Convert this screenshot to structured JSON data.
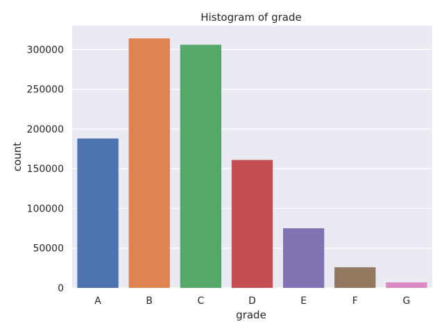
{
  "chart_data": {
    "type": "bar",
    "title": "Histogram of grade",
    "xlabel": "grade",
    "ylabel": "count",
    "categories": [
      "A",
      "B",
      "C",
      "D",
      "E",
      "F",
      "G"
    ],
    "values": [
      188000,
      314000,
      306000,
      161000,
      75000,
      26000,
      7000
    ],
    "ylim": [
      0,
      330000
    ],
    "yticks": [
      0,
      50000,
      100000,
      150000,
      200000,
      250000,
      300000
    ],
    "ytick_labels": [
      "0",
      "50000",
      "100000",
      "150000",
      "200000",
      "250000",
      "300000"
    ],
    "colors": [
      "#4c72b0",
      "#dd8452",
      "#55a868",
      "#c44e52",
      "#8172b3",
      "#937860",
      "#da8bc3"
    ],
    "background": "#eaeaf2",
    "grid": true,
    "legend": false
  }
}
